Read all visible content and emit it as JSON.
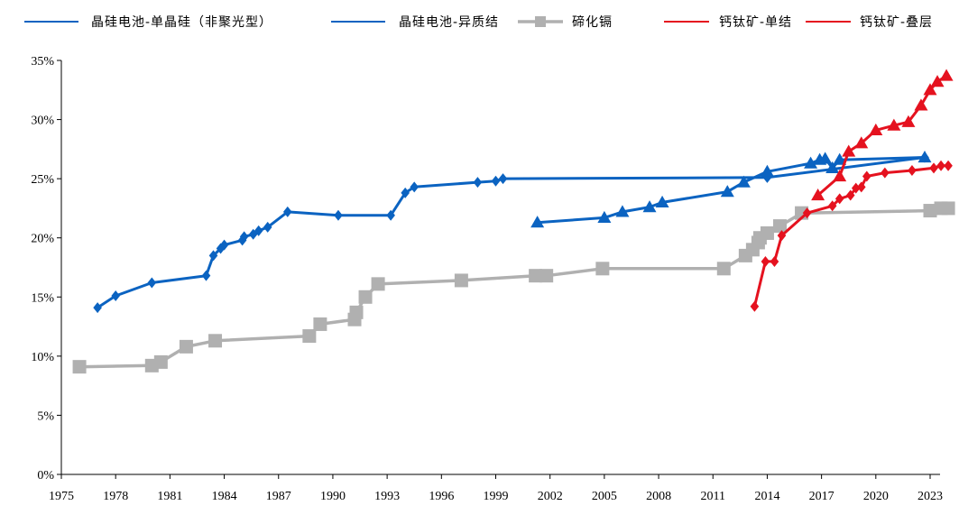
{
  "chart_data": {
    "type": "line",
    "title": "",
    "xlabel": "",
    "ylabel": "",
    "xlim": [
      1975,
      2024
    ],
    "ylim": [
      0,
      35
    ],
    "x_ticks": [
      "1975",
      "1978",
      "1981",
      "1984",
      "1987",
      "1990",
      "1993",
      "1996",
      "1999",
      "2002",
      "2005",
      "2008",
      "2011",
      "2014",
      "2017",
      "2020",
      "2023"
    ],
    "y_ticks": [
      "0%",
      "5%",
      "10%",
      "15%",
      "20%",
      "25%",
      "30%",
      "35%"
    ],
    "grid": false,
    "legend_position": "top",
    "series": [
      {
        "name": "晶硅电池-单晶硅（非聚光型）",
        "color": "#0b63c1",
        "marker": "diamond",
        "points": [
          [
            1977.0,
            14.1
          ],
          [
            1978.0,
            15.1
          ],
          [
            1980.0,
            16.2
          ],
          [
            1983.0,
            16.8
          ],
          [
            1983.4,
            18.5
          ],
          [
            1983.8,
            19.1
          ],
          [
            1984.0,
            19.4
          ],
          [
            1985.0,
            19.8
          ],
          [
            1985.1,
            20.1
          ],
          [
            1985.6,
            20.3
          ],
          [
            1985.9,
            20.6
          ],
          [
            1986.4,
            20.9
          ],
          [
            1987.5,
            22.2
          ],
          [
            1990.3,
            21.9
          ],
          [
            1993.2,
            21.9
          ],
          [
            1994.0,
            23.8
          ],
          [
            1994.5,
            24.3
          ],
          [
            1998.0,
            24.7
          ],
          [
            1999.0,
            24.8
          ],
          [
            1999.4,
            25.0
          ],
          [
            2014.0,
            25.1
          ],
          [
            2022.7,
            26.8
          ]
        ]
      },
      {
        "name": "晶硅电池-异质结",
        "color": "#0b63c1",
        "marker": "triangle",
        "points": [
          [
            2001.3,
            21.3
          ],
          [
            2005.0,
            21.7
          ],
          [
            2006.0,
            22.2
          ],
          [
            2007.5,
            22.6
          ],
          [
            2008.2,
            23.0
          ],
          [
            2011.8,
            23.9
          ],
          [
            2012.7,
            24.7
          ],
          [
            2014.0,
            25.6
          ],
          [
            2016.4,
            26.3
          ],
          [
            2016.9,
            26.6
          ],
          [
            2017.2,
            26.7
          ],
          [
            2017.6,
            25.9
          ],
          [
            2018.0,
            26.6
          ],
          [
            2022.7,
            26.8
          ]
        ]
      },
      {
        "name": "碲化镉",
        "color": "#b0b0b0",
        "marker": "square",
        "points": [
          [
            1976.0,
            9.1
          ],
          [
            1980.0,
            9.2
          ],
          [
            1980.5,
            9.5
          ],
          [
            1981.9,
            10.8
          ],
          [
            1983.5,
            11.3
          ],
          [
            1988.7,
            11.7
          ],
          [
            1989.3,
            12.7
          ],
          [
            1991.2,
            13.1
          ],
          [
            1991.3,
            13.7
          ],
          [
            1991.8,
            15.0
          ],
          [
            1992.5,
            16.1
          ],
          [
            1997.1,
            16.4
          ],
          [
            2001.2,
            16.8
          ],
          [
            2001.8,
            16.8
          ],
          [
            2004.9,
            17.4
          ],
          [
            2011.6,
            17.4
          ],
          [
            2012.8,
            18.5
          ],
          [
            2013.2,
            19.0
          ],
          [
            2013.5,
            19.6
          ],
          [
            2013.6,
            20.0
          ],
          [
            2014.0,
            20.4
          ],
          [
            2014.7,
            21.0
          ],
          [
            2015.9,
            22.1
          ],
          [
            2023.0,
            22.3
          ],
          [
            2023.6,
            22.5
          ],
          [
            2024.0,
            22.5
          ]
        ]
      },
      {
        "name": "钙钛矿-单结",
        "color": "#e5121f",
        "marker": "diamond",
        "points": [
          [
            2013.3,
            14.2
          ],
          [
            2013.9,
            18.0
          ],
          [
            2014.4,
            18.0
          ],
          [
            2014.8,
            20.2
          ],
          [
            2016.2,
            22.1
          ],
          [
            2017.6,
            22.7
          ],
          [
            2018.0,
            23.3
          ],
          [
            2018.6,
            23.6
          ],
          [
            2018.9,
            24.2
          ],
          [
            2019.2,
            24.3
          ],
          [
            2019.5,
            25.2
          ],
          [
            2020.5,
            25.5
          ],
          [
            2022.0,
            25.7
          ],
          [
            2023.2,
            25.9
          ],
          [
            2023.6,
            26.1
          ],
          [
            2024.0,
            26.1
          ]
        ]
      },
      {
        "name": "钙钛矿-叠层",
        "color": "#e5121f",
        "marker": "triangle",
        "points": [
          [
            2016.8,
            23.6
          ],
          [
            2018.0,
            25.2
          ],
          [
            2018.5,
            27.3
          ],
          [
            2019.2,
            28.0
          ],
          [
            2020.0,
            29.1
          ],
          [
            2021.0,
            29.5
          ],
          [
            2021.8,
            29.8
          ],
          [
            2022.5,
            31.2
          ],
          [
            2023.0,
            32.5
          ],
          [
            2023.4,
            33.2
          ],
          [
            2023.9,
            33.7
          ]
        ]
      }
    ]
  }
}
